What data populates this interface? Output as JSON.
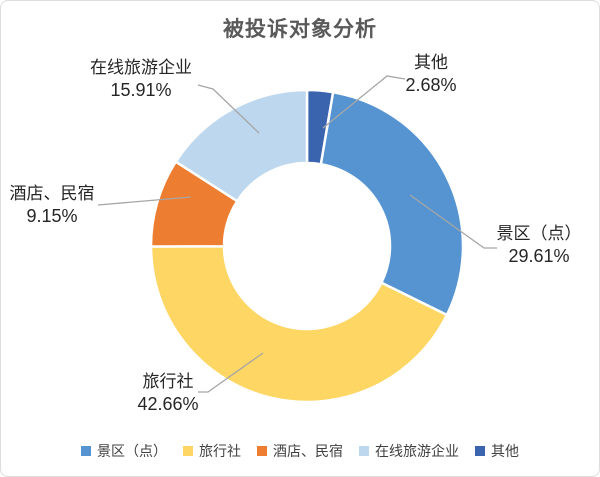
{
  "chart_data": {
    "type": "donut",
    "title": "被投诉对象分析",
    "unit": "%",
    "categories": [
      "景区（点）",
      "旅行社",
      "酒店、民宿",
      "在线旅游企业",
      "其他"
    ],
    "values": [
      29.61,
      42.66,
      9.15,
      15.91,
      2.68
    ],
    "colors": [
      "#5694D1",
      "#FDD663",
      "#ED7D31",
      "#BDD7EE",
      "#3A64AD"
    ],
    "draw_order_from_top_clockwise": [
      4,
      0,
      1,
      2,
      3
    ],
    "hole_ratio": 0.53,
    "grid": false,
    "legend_position": "bottom",
    "callouts": [
      {
        "label": "在线旅游企业",
        "value": "15.91%"
      },
      {
        "label": "其他",
        "value": "2.68%"
      },
      {
        "label": "景区（点）",
        "value": "29.61%"
      },
      {
        "label": "旅行社",
        "value": "42.66%"
      },
      {
        "label": "酒店、民宿",
        "value": "9.15%"
      }
    ],
    "legend": [
      {
        "label": "景区（点）",
        "color": "#5694D1"
      },
      {
        "label": "旅行社",
        "color": "#FDD663"
      },
      {
        "label": "酒店、民宿",
        "color": "#ED7D31"
      },
      {
        "label": "在线旅游企业",
        "color": "#BDD7EE"
      },
      {
        "label": "其他",
        "color": "#3A64AD"
      }
    ]
  },
  "styles": {
    "title_color": "#595959",
    "leader_line_color": "#A6A6A6",
    "border_color": "#DCDCDC",
    "label_text_color": "#262626"
  }
}
